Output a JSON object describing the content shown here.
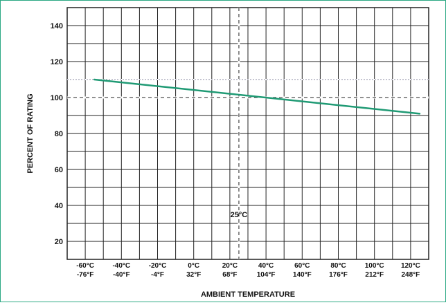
{
  "colors": {
    "frame": "#2aa882",
    "line": "#1f9a74",
    "grid": "#222222",
    "background": "#ffffff"
  },
  "chart_data": {
    "type": "line",
    "title": "",
    "xlabel": "AMBIENT TEMPERATURE",
    "ylabel": "PERCENT OF RATING",
    "x_ticks": [
      {
        "value": -60,
        "c": "-60°C",
        "f": "-76°F"
      },
      {
        "value": -40,
        "c": "-40°C",
        "f": "-40°F"
      },
      {
        "value": -20,
        "c": "-20°C",
        "f": "-4°F"
      },
      {
        "value": 0,
        "c": "0°C",
        "f": "32°F"
      },
      {
        "value": 20,
        "c": "20°C",
        "f": "68°F"
      },
      {
        "value": 40,
        "c": "40°C",
        "f": "104°F"
      },
      {
        "value": 60,
        "c": "60°C",
        "f": "140°F"
      },
      {
        "value": 80,
        "c": "80°C",
        "f": "176°F"
      },
      {
        "value": 100,
        "c": "100°C",
        "f": "212°F"
      },
      {
        "value": 120,
        "c": "120°C",
        "f": "248°F"
      }
    ],
    "y_ticks": [
      20,
      40,
      60,
      80,
      100,
      120,
      140
    ],
    "xlim": [
      -70,
      130
    ],
    "ylim": [
      10,
      150
    ],
    "grid": true,
    "series": [
      {
        "x": [
          -55,
          125
        ],
        "y": [
          110,
          91
        ]
      }
    ],
    "reference_lines": {
      "vertical_x": 25,
      "horizontal_y": 100,
      "horizontal_y_faint": 110
    },
    "annotation": {
      "text": "25°C",
      "x": 25,
      "y": 35
    }
  }
}
